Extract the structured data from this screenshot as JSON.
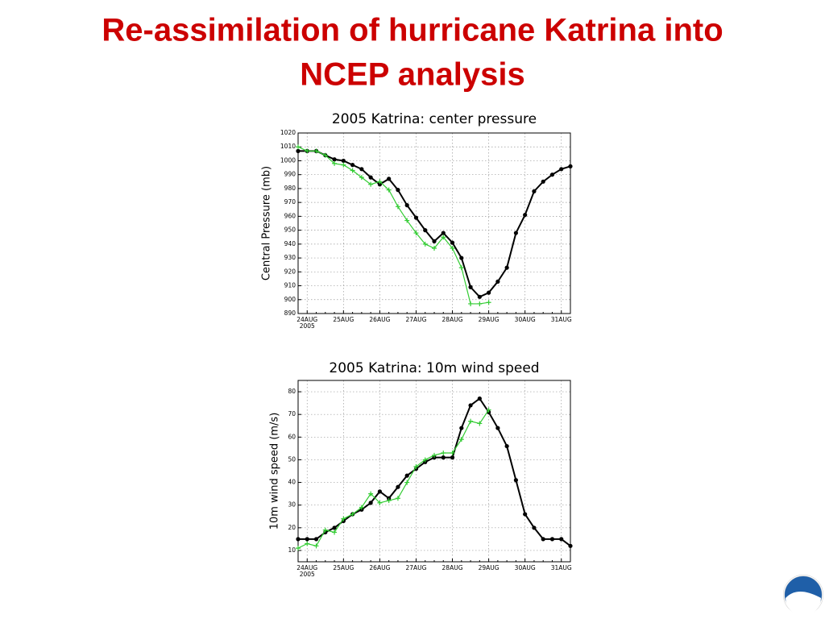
{
  "slide_title": [
    "Re-assimilation of hurricane Katrina into",
    "NCEP analysis"
  ],
  "chart_data": [
    {
      "type": "line",
      "title": "2005 Katrina: center pressure",
      "y_label": "Central Pressure (mb)",
      "categories": [
        null,
        "24AUG",
        null,
        null,
        null,
        "25AUG",
        null,
        null,
        null,
        "26AUG",
        null,
        null,
        null,
        "27AUG",
        null,
        null,
        null,
        "28AUG",
        null,
        null,
        null,
        "29AUG",
        null,
        null,
        null,
        "30AUG",
        null,
        null,
        null,
        "31AUG",
        null
      ],
      "x_sublabel": "2005",
      "ylim": [
        890,
        1020
      ],
      "yticks": [
        890,
        900,
        910,
        920,
        930,
        940,
        950,
        960,
        970,
        980,
        990,
        1000,
        1010,
        1020
      ],
      "grid": true,
      "series": [
        {
          "color": "#000000",
          "marker": "circle",
          "values": [
            1007,
            1007,
            1007,
            1004,
            1001,
            1000,
            997,
            994,
            988,
            983,
            987,
            979,
            968,
            959,
            950,
            942,
            948,
            941,
            930,
            909,
            902,
            905,
            913,
            923,
            948,
            961,
            978,
            985,
            990,
            994,
            996
          ]
        },
        {
          "color": "#33cc33",
          "marker": "plus",
          "values": [
            1010,
            1007,
            1007,
            1004,
            998,
            997,
            993,
            988,
            983,
            985,
            979,
            967,
            957,
            948,
            940,
            937,
            945,
            937,
            923,
            897,
            897,
            898,
            null,
            null,
            null,
            null,
            null,
            null,
            null,
            null,
            null
          ]
        }
      ]
    },
    {
      "type": "line",
      "title": "2005 Katrina: 10m wind speed",
      "y_label": "10m wind speed (m/s)",
      "categories": [
        null,
        "24AUG",
        null,
        null,
        null,
        "25AUG",
        null,
        null,
        null,
        "26AUG",
        null,
        null,
        null,
        "27AUG",
        null,
        null,
        null,
        "28AUG",
        null,
        null,
        null,
        "29AUG",
        null,
        null,
        null,
        "30AUG",
        null,
        null,
        null,
        "31AUG",
        null
      ],
      "x_sublabel": "2005",
      "ylim": [
        5,
        85
      ],
      "yticks": [
        10,
        20,
        30,
        40,
        50,
        60,
        70,
        80
      ],
      "grid": true,
      "series": [
        {
          "color": "#000000",
          "marker": "circle",
          "values": [
            15,
            15,
            15,
            18,
            20,
            23,
            26,
            28,
            31,
            36,
            33,
            38,
            43,
            46,
            49,
            51,
            51,
            51,
            64,
            74,
            77,
            71,
            64,
            56,
            41,
            26,
            20,
            15,
            15,
            15,
            12
          ]
        },
        {
          "color": "#33cc33",
          "marker": "plus",
          "values": [
            11,
            13,
            12,
            19,
            18,
            24,
            26,
            29,
            35,
            31,
            32,
            33,
            40,
            47,
            50,
            52,
            53,
            53,
            59,
            67,
            66,
            72,
            null,
            null,
            null,
            null,
            null,
            null,
            null,
            null,
            null
          ]
        }
      ]
    }
  ]
}
